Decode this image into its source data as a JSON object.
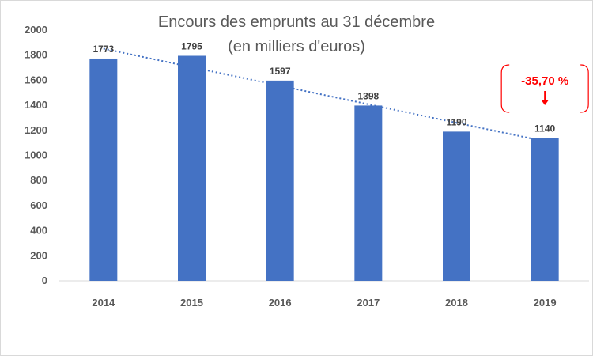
{
  "chart_data": {
    "type": "bar",
    "title": "Encours des emprunts au 31 décembre",
    "subtitle": "(en milliers d'euros)",
    "categories": [
      "2014",
      "2015",
      "2016",
      "2017",
      "2018",
      "2019"
    ],
    "values": [
      1773,
      1795,
      1597,
      1398,
      1190,
      1140
    ],
    "ylim": [
      0,
      2000
    ],
    "yticks": [
      0,
      200,
      400,
      600,
      800,
      1000,
      1200,
      1400,
      1600,
      1800,
      2000
    ],
    "bar_color": "#4472c4",
    "trendline": {
      "type": "linear",
      "style": "dotted",
      "color": "#4472c4"
    },
    "annotation": {
      "text": "-35,70 %",
      "color": "#ff0000",
      "target_category": "2019"
    },
    "grid": false,
    "legend": "none"
  }
}
